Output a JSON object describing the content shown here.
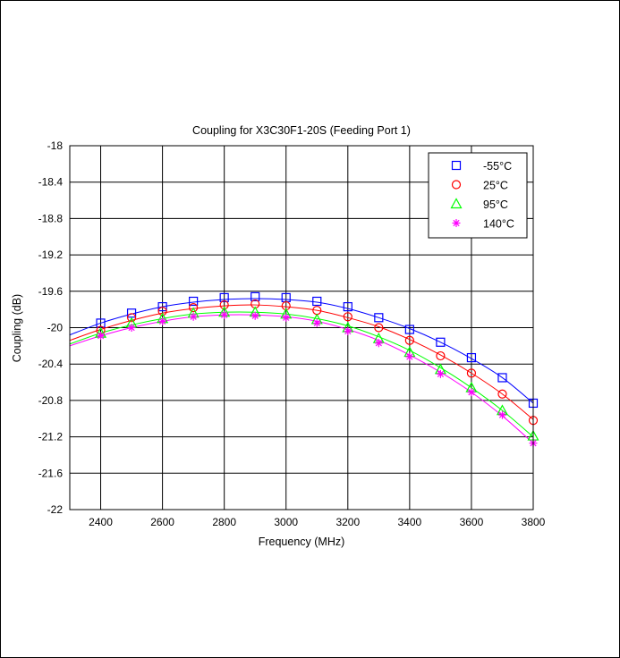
{
  "chart_data": {
    "type": "line",
    "title": "Coupling for X3C30F1-20S (Feeding Port 1)",
    "xlabel": "Frequency (MHz)",
    "ylabel": "Coupling (dB)",
    "xlim": [
      2300,
      3800
    ],
    "ylim": [
      -22,
      -18
    ],
    "xticks": [
      2400,
      2600,
      2800,
      3000,
      3200,
      3400,
      3600,
      3800
    ],
    "yticks": [
      -18,
      -18.4,
      -18.8,
      -19.2,
      -19.6,
      -20,
      -20.4,
      -20.8,
      -21.2,
      -21.6,
      -22
    ],
    "grid": true,
    "legend_position": "top-right",
    "series": [
      {
        "name": "-55°C",
        "color": "#0000ff",
        "marker": "square",
        "curve_x": [
          2300,
          2400,
          2500,
          2600,
          2700,
          2800,
          2900,
          3000,
          3100,
          3200,
          3300,
          3400,
          3500,
          3600,
          3700,
          3800
        ],
        "curve_y": [
          -20.08,
          -19.95,
          -19.85,
          -19.77,
          -19.72,
          -19.69,
          -19.68,
          -19.69,
          -19.72,
          -19.79,
          -19.89,
          -20.01,
          -20.16,
          -20.34,
          -20.55,
          -20.83
        ],
        "marker_x": [
          2400,
          2500,
          2600,
          2700,
          2800,
          2900,
          3000,
          3100,
          3200,
          3300,
          3400,
          3500,
          3600,
          3700,
          3800
        ],
        "marker_y": [
          -19.95,
          -19.84,
          -19.77,
          -19.71,
          -19.67,
          -19.66,
          -19.67,
          -19.71,
          -19.77,
          -19.89,
          -20.02,
          -20.16,
          -20.33,
          -20.55,
          -20.83
        ]
      },
      {
        "name": "25°C",
        "color": "#ff0000",
        "marker": "circle",
        "curve_x": [
          2300,
          2400,
          2500,
          2600,
          2700,
          2800,
          2900,
          3000,
          3100,
          3200,
          3300,
          3400,
          3500,
          3600,
          3700,
          3800
        ],
        "curve_y": [
          -20.14,
          -20.02,
          -19.92,
          -19.84,
          -19.79,
          -19.76,
          -19.75,
          -19.77,
          -19.81,
          -19.89,
          -19.99,
          -20.13,
          -20.3,
          -20.5,
          -20.73,
          -21.01
        ],
        "marker_x": [
          2400,
          2500,
          2600,
          2700,
          2800,
          2900,
          3000,
          3100,
          3200,
          3300,
          3400,
          3500,
          3600,
          3700,
          3800
        ],
        "marker_y": [
          -20.03,
          -19.89,
          -19.82,
          -19.78,
          -19.75,
          -19.74,
          -19.76,
          -19.81,
          -19.88,
          -20.0,
          -20.14,
          -20.31,
          -20.5,
          -20.73,
          -21.02
        ]
      },
      {
        "name": "95°C",
        "color": "#00ff00",
        "marker": "triangle",
        "curve_x": [
          2300,
          2400,
          2500,
          2600,
          2700,
          2800,
          2900,
          3000,
          3100,
          3200,
          3300,
          3400,
          3500,
          3600,
          3700,
          3800
        ],
        "curve_y": [
          -20.18,
          -20.06,
          -19.97,
          -19.9,
          -19.85,
          -19.83,
          -19.83,
          -19.85,
          -19.9,
          -19.98,
          -20.1,
          -20.25,
          -20.44,
          -20.66,
          -20.91,
          -21.2
        ],
        "marker_x": [
          2400,
          2500,
          2600,
          2700,
          2800,
          2900,
          3000,
          3100,
          3200,
          3300,
          3400,
          3500,
          3600,
          3700,
          3800
        ],
        "marker_y": [
          -20.06,
          -19.95,
          -19.9,
          -19.84,
          -19.83,
          -19.83,
          -19.85,
          -19.91,
          -20.0,
          -20.12,
          -20.27,
          -20.46,
          -20.66,
          -20.91,
          -21.19
        ]
      },
      {
        "name": "140°C",
        "color": "#ff00ff",
        "marker": "asterisk",
        "curve_x": [
          2300,
          2400,
          2500,
          2600,
          2700,
          2800,
          2900,
          3000,
          3100,
          3200,
          3300,
          3400,
          3500,
          3600,
          3700,
          3800
        ],
        "curve_y": [
          -20.2,
          -20.09,
          -20.0,
          -19.93,
          -19.88,
          -19.86,
          -19.86,
          -19.88,
          -19.93,
          -20.02,
          -20.14,
          -20.3,
          -20.49,
          -20.71,
          -20.97,
          -21.27
        ],
        "marker_x": [
          2400,
          2500,
          2600,
          2700,
          2800,
          2900,
          3000,
          3100,
          3200,
          3300,
          3400,
          3500,
          3600,
          3700,
          3800
        ],
        "marker_y": [
          -20.09,
          -20.0,
          -19.93,
          -19.88,
          -19.86,
          -19.87,
          -19.89,
          -19.95,
          -20.04,
          -20.17,
          -20.32,
          -20.51,
          -20.71,
          -20.96,
          -21.27
        ]
      }
    ]
  }
}
